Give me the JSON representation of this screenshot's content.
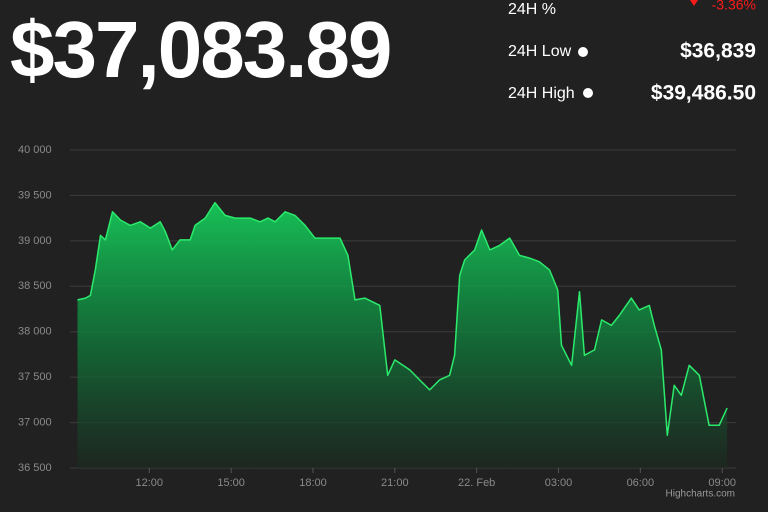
{
  "stats": {
    "price": "$37,083.89",
    "change_label": "24H %",
    "change_value": "-3.36%",
    "low_label": "24H Low",
    "low_value": "$36,839",
    "high_label": "24H High",
    "high_value": "$39,486.50"
  },
  "chart_data": {
    "type": "area",
    "color": "#2bea6c",
    "grid": true,
    "credits": "Highcharts.com",
    "x": [
      9.37,
      9.66,
      9.84,
      10.02,
      10.21,
      10.39,
      10.65,
      10.94,
      11.3,
      11.67,
      12.04,
      12.4,
      12.59,
      12.84,
      13.13,
      13.5,
      13.68,
      14.05,
      14.41,
      14.78,
      15.15,
      15.7,
      16.06,
      16.35,
      16.61,
      16.98,
      17.34,
      17.71,
      18.07,
      18.44,
      18.99,
      19.28,
      19.54,
      19.9,
      20.45,
      20.74,
      21.0,
      21.55,
      21.91,
      22.28,
      22.64,
      23.01,
      23.19,
      23.38,
      23.56,
      23.93,
      24.18,
      24.48,
      24.84,
      25.21,
      25.57,
      25.94,
      26.3,
      26.67,
      26.97,
      27.11,
      27.48,
      27.77,
      27.95,
      28.32,
      28.58,
      28.94,
      29.23,
      29.67,
      29.96,
      30.33,
      30.51,
      30.77,
      30.99,
      31.24,
      31.5,
      31.79,
      32.16,
      32.52,
      32.89,
      33.18
    ],
    "values": [
      38350,
      38370,
      38400,
      38680,
      39060,
      39010,
      39320,
      39230,
      39170,
      39210,
      39140,
      39210,
      39100,
      38900,
      39010,
      39010,
      39170,
      39250,
      39420,
      39280,
      39250,
      39250,
      39210,
      39250,
      39210,
      39320,
      39280,
      39170,
      39030,
      39030,
      39030,
      38840,
      38350,
      38370,
      38290,
      37520,
      37690,
      37580,
      37470,
      37360,
      37470,
      37520,
      37740,
      38620,
      38790,
      38900,
      39120,
      38900,
      38950,
      39030,
      38840,
      38810,
      38770,
      38680,
      38460,
      37850,
      37630,
      38440,
      37740,
      37800,
      38130,
      38070,
      38180,
      38370,
      38240,
      38290,
      38070,
      37800,
      36860,
      37410,
      37300,
      37630,
      37520,
      36970,
      36970,
      37160
    ],
    "xlim": [
      9.35,
      33.25
    ],
    "xticks": [
      {
        "value": 12,
        "label": "12:00"
      },
      {
        "value": 15,
        "label": "15:00"
      },
      {
        "value": 18,
        "label": "18:00"
      },
      {
        "value": 21,
        "label": "21:00"
      },
      {
        "value": 24,
        "label": "22. Feb"
      },
      {
        "value": 27,
        "label": "03:00"
      },
      {
        "value": 30,
        "label": "06:00"
      },
      {
        "value": 33,
        "label": "09:00"
      }
    ],
    "ylim": [
      36500,
      40000
    ],
    "yticks": [
      {
        "value": 36500,
        "label": "36 500"
      },
      {
        "value": 37000,
        "label": "37 000"
      },
      {
        "value": 37500,
        "label": "37 500"
      },
      {
        "value": 38000,
        "label": "38 000"
      },
      {
        "value": 38500,
        "label": "38 500"
      },
      {
        "value": 39000,
        "label": "39 000"
      },
      {
        "value": 39500,
        "label": "39 500"
      },
      {
        "value": 40000,
        "label": "40 000"
      }
    ]
  }
}
